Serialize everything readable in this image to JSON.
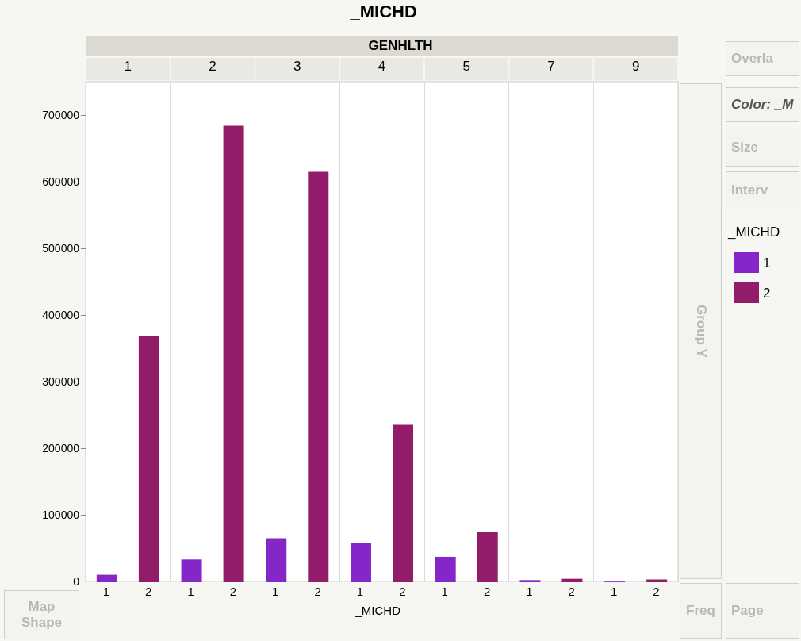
{
  "chart_data": {
    "type": "bar",
    "title": "_MICHD",
    "xlabel": "_MICHD",
    "x2label": "GENHLTH",
    "legend_title": "_MICHD",
    "categories": [
      "1",
      "2",
      "3",
      "4",
      "5",
      "7",
      "9"
    ],
    "series": [
      {
        "name": "1",
        "color": "#8526c9",
        "values": [
          10000,
          33000,
          65000,
          57000,
          37000,
          2000,
          1000
        ]
      },
      {
        "name": "2",
        "color": "#921c6a",
        "values": [
          368000,
          684000,
          615000,
          235000,
          75000,
          4000,
          3000
        ]
      }
    ],
    "ylim": [
      0,
      750000
    ],
    "yticks": [
      0,
      100000,
      200000,
      300000,
      400000,
      500000,
      600000,
      700000
    ],
    "grid": false,
    "legend": "right",
    "annotations": [
      "Overla",
      "Color: _M",
      "Size",
      "Interv",
      "Group Y",
      "Map Shape",
      "Freq",
      "Page"
    ]
  }
}
